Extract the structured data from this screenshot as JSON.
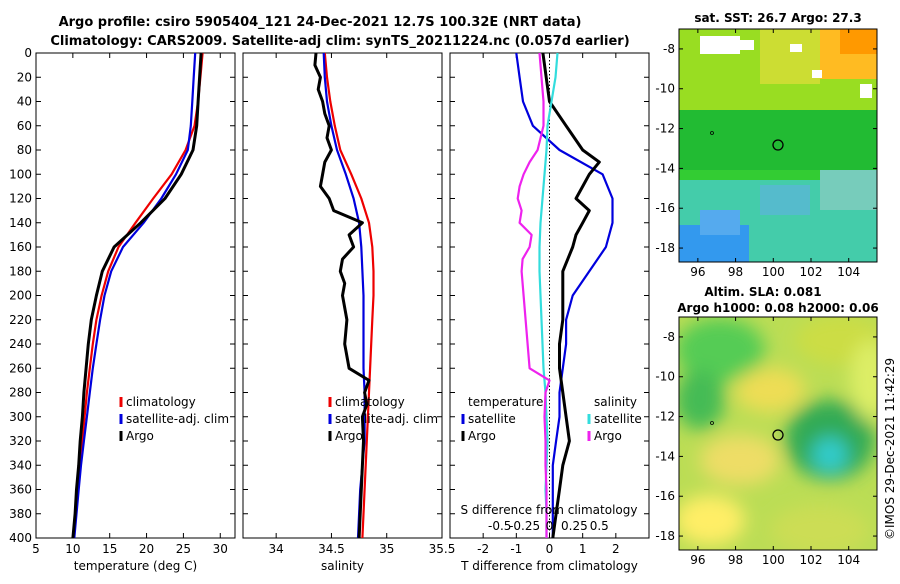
{
  "title": {
    "line1": "Argo profile: csiro 5905404_121 24-Dec-2021 12.7S 100.32E (NRT data)",
    "line2": "Climatology: CARS2009. Satellite-adj clim: synTS_20211224.nc (0.057d earlier)"
  },
  "timestamp": "©IMOS 29-Dec-2021 11:42:29",
  "colors": {
    "climatology": "#ee0000",
    "satellite": "#0000dd",
    "argo": "#000000",
    "sat_salinity": "#33dddd",
    "argo_salinity": "#ee22ee"
  },
  "chart_data": [
    {
      "type": "line",
      "id": "temperature",
      "xlabel": "temperature (deg C)",
      "xlim": [
        5,
        32
      ],
      "ylim": [
        400,
        0
      ],
      "xticks": [
        "5",
        "10",
        "15",
        "20",
        "25",
        "30"
      ],
      "xtick_values": [
        5,
        10,
        15,
        20,
        25,
        30
      ],
      "yticks": [
        "0",
        "20",
        "40",
        "60",
        "80",
        "100",
        "120",
        "140",
        "160",
        "180",
        "200",
        "220",
        "240",
        "260",
        "280",
        "300",
        "320",
        "340",
        "360",
        "380",
        "400"
      ],
      "ytick_values": [
        0,
        20,
        40,
        60,
        80,
        100,
        120,
        140,
        160,
        180,
        200,
        220,
        240,
        260,
        280,
        300,
        320,
        340,
        360,
        380,
        400
      ],
      "legend": [
        "climatology",
        "satellite-adj. clim",
        "Argo"
      ],
      "series": [
        {
          "name": "climatology",
          "depth": [
            0,
            20,
            40,
            60,
            80,
            100,
            120,
            140,
            160,
            180,
            200,
            220,
            240,
            260,
            280,
            300,
            320,
            340,
            360,
            380,
            400
          ],
          "values": [
            27.6,
            27.3,
            27.0,
            26.5,
            25.3,
            23.4,
            20.9,
            18.5,
            16.2,
            14.8,
            13.9,
            13.2,
            12.7,
            12.3,
            11.9,
            11.6,
            11.3,
            11.0,
            10.7,
            10.4,
            10.1
          ]
        },
        {
          "name": "satellite-adj. clim",
          "depth": [
            0,
            20,
            40,
            60,
            80,
            100,
            120,
            140,
            160,
            180,
            200,
            220,
            240,
            260,
            280,
            300,
            320,
            340,
            360,
            380,
            400
          ],
          "values": [
            26.6,
            26.4,
            26.2,
            26.0,
            25.6,
            24.0,
            22.0,
            19.6,
            16.8,
            15.2,
            14.3,
            13.7,
            13.2,
            12.7,
            12.3,
            11.9,
            11.5,
            11.1,
            10.8,
            10.5,
            10.2
          ]
        },
        {
          "name": "Argo",
          "depth": [
            0,
            20,
            40,
            60,
            80,
            100,
            120,
            140,
            160,
            180,
            200,
            220,
            240,
            260,
            280,
            300,
            320,
            340,
            360,
            380,
            400
          ],
          "values": [
            27.4,
            27.2,
            27.0,
            26.8,
            26.3,
            24.7,
            22.5,
            19.2,
            15.6,
            14.0,
            13.2,
            12.5,
            12.1,
            11.8,
            11.5,
            11.3,
            11.0,
            10.8,
            10.5,
            10.3,
            10.0
          ]
        }
      ]
    },
    {
      "type": "line",
      "id": "salinity",
      "xlabel": "salinity",
      "xlim": [
        33.7,
        35.5
      ],
      "ylim": [
        400,
        0
      ],
      "xticks": [
        "34",
        "34.5",
        "35",
        "35.5"
      ],
      "xtick_values": [
        34,
        34.5,
        35,
        35.5
      ],
      "legend": [
        "climatology",
        "satellite-adj. clim",
        "Argo"
      ],
      "series": [
        {
          "name": "climatology",
          "depth": [
            0,
            20,
            40,
            60,
            80,
            100,
            120,
            140,
            160,
            180,
            200,
            220,
            240,
            260,
            280,
            300,
            320,
            340,
            360,
            380,
            400
          ],
          "values": [
            34.44,
            34.46,
            34.49,
            34.53,
            34.58,
            34.68,
            34.77,
            34.84,
            34.87,
            34.88,
            34.88,
            34.87,
            34.86,
            34.85,
            34.84,
            34.83,
            34.82,
            34.81,
            34.8,
            34.79,
            34.78
          ]
        },
        {
          "name": "satellite-adj. clim",
          "depth": [
            0,
            20,
            40,
            60,
            80,
            100,
            120,
            140,
            160,
            180,
            200,
            220,
            240,
            260,
            280,
            300,
            320,
            340,
            360,
            380,
            400
          ],
          "values": [
            34.43,
            34.44,
            34.46,
            34.5,
            34.55,
            34.63,
            34.7,
            34.75,
            34.77,
            34.78,
            34.79,
            34.79,
            34.79,
            34.79,
            34.8,
            34.8,
            34.8,
            34.78,
            34.76,
            34.75,
            34.74
          ]
        },
        {
          "name": "Argo",
          "depth": [
            0,
            10,
            20,
            30,
            40,
            50,
            60,
            70,
            80,
            90,
            100,
            110,
            120,
            130,
            140,
            150,
            160,
            170,
            180,
            190,
            200,
            220,
            240,
            260,
            270,
            280,
            290,
            300,
            320,
            340,
            360,
            380,
            400
          ],
          "values": [
            34.36,
            34.35,
            34.4,
            34.38,
            34.42,
            34.44,
            34.48,
            34.46,
            34.5,
            34.44,
            34.42,
            34.4,
            34.48,
            34.52,
            34.78,
            34.66,
            34.7,
            34.6,
            34.58,
            34.62,
            34.6,
            34.64,
            34.62,
            34.66,
            34.84,
            34.8,
            34.82,
            34.78,
            34.79,
            34.78,
            34.77,
            34.76,
            34.75
          ]
        }
      ]
    },
    {
      "type": "line",
      "id": "difference",
      "xlabel": "T difference from climatology",
      "xlabel_top": "S difference from climatology",
      "xlim": [
        -3,
        3
      ],
      "ylim": [
        400,
        0
      ],
      "xticks": [
        "-2",
        "-1",
        "0",
        "1",
        "2"
      ],
      "xtick_values": [
        -2,
        -1,
        0,
        1,
        2
      ],
      "s_xticks": [
        "-0.5",
        "-0.25",
        "0",
        "0.25",
        "0.5"
      ],
      "s_xtick_values": [
        -0.5,
        -0.25,
        0,
        0.25,
        0.5
      ],
      "legend_left": [
        "temperature",
        "satellite",
        "Argo"
      ],
      "legend_right": [
        "salinity",
        "satellite",
        "Argo"
      ],
      "series": [
        {
          "name": "T satellite",
          "depth": [
            0,
            20,
            40,
            60,
            80,
            100,
            120,
            140,
            160,
            180,
            200,
            220,
            240,
            260,
            280,
            300,
            320,
            340,
            360,
            380,
            400
          ],
          "values": [
            -1.0,
            -0.9,
            -0.8,
            -0.5,
            0.3,
            1.6,
            1.9,
            1.9,
            1.7,
            1.2,
            0.7,
            0.5,
            0.5,
            0.4,
            0.3,
            0.3,
            0.2,
            0.1,
            0.1,
            0.1,
            0.1
          ]
        },
        {
          "name": "T Argo",
          "depth": [
            0,
            20,
            40,
            60,
            80,
            90,
            100,
            110,
            120,
            130,
            140,
            150,
            160,
            180,
            200,
            220,
            240,
            260,
            280,
            300,
            320,
            340,
            360,
            380,
            400
          ],
          "values": [
            -0.2,
            -0.1,
            0.0,
            0.5,
            1.0,
            1.5,
            1.2,
            1.0,
            0.8,
            1.2,
            1.0,
            0.8,
            0.7,
            0.4,
            0.4,
            0.4,
            0.3,
            0.3,
            0.4,
            0.5,
            0.6,
            0.4,
            0.3,
            0.2,
            0.1
          ]
        },
        {
          "name": "S satellite",
          "depth": [
            0,
            20,
            40,
            60,
            80,
            100,
            120,
            140,
            160,
            180,
            200,
            220,
            240,
            260,
            280,
            300,
            320,
            340,
            360,
            380,
            400
          ],
          "values": [
            0.08,
            0.06,
            0.02,
            -0.02,
            -0.03,
            -0.05,
            -0.07,
            -0.09,
            -0.1,
            -0.1,
            -0.09,
            -0.08,
            -0.07,
            -0.06,
            -0.04,
            -0.03,
            -0.02,
            -0.03,
            -0.04,
            -0.03,
            -0.03
          ]
        },
        {
          "name": "S Argo",
          "depth": [
            0,
            20,
            40,
            60,
            80,
            90,
            100,
            110,
            120,
            130,
            140,
            150,
            160,
            170,
            180,
            200,
            220,
            240,
            260,
            270,
            280,
            300,
            320,
            340,
            360,
            380,
            400
          ],
          "values": [
            -0.1,
            -0.08,
            -0.06,
            -0.06,
            -0.12,
            -0.2,
            -0.26,
            -0.3,
            -0.32,
            -0.28,
            -0.3,
            -0.18,
            -0.2,
            -0.27,
            -0.28,
            -0.26,
            -0.24,
            -0.22,
            -0.2,
            0.0,
            -0.04,
            -0.05,
            -0.04,
            -0.04,
            -0.03,
            -0.03,
            -0.03
          ]
        }
      ]
    },
    {
      "type": "heatmap",
      "id": "sst_map",
      "title": "sat. SST: 26.7 Argo: 27.3",
      "xlim": [
        95,
        105.5
      ],
      "ylim": [
        -18.7,
        -7
      ],
      "xticks": [
        "96",
        "98",
        "100",
        "102",
        "104"
      ],
      "xtick_values": [
        96,
        98,
        100,
        102,
        104
      ],
      "yticks": [
        "-8",
        "-10",
        "-12",
        "-14",
        "-16",
        "-18"
      ],
      "ytick_values": [
        -8,
        -10,
        -12,
        -14,
        -16,
        -18
      ],
      "marker": {
        "lon": 100.32,
        "lat": -12.7
      }
    },
    {
      "type": "heatmap",
      "id": "sla_map",
      "title": "Altim. SLA: 0.081",
      "subtitle": "Argo h1000: 0.08 h2000: 0.06",
      "xlim": [
        95,
        105.5
      ],
      "ylim": [
        -18.7,
        -7
      ],
      "xticks": [
        "96",
        "98",
        "100",
        "102",
        "104"
      ],
      "xtick_values": [
        96,
        98,
        100,
        102,
        104
      ],
      "yticks": [
        "-8",
        "-10",
        "-12",
        "-14",
        "-16",
        "-18"
      ],
      "ytick_values": [
        -8,
        -10,
        -12,
        -14,
        -16,
        -18
      ],
      "marker": {
        "lon": 100.32,
        "lat": -12.7
      }
    }
  ]
}
